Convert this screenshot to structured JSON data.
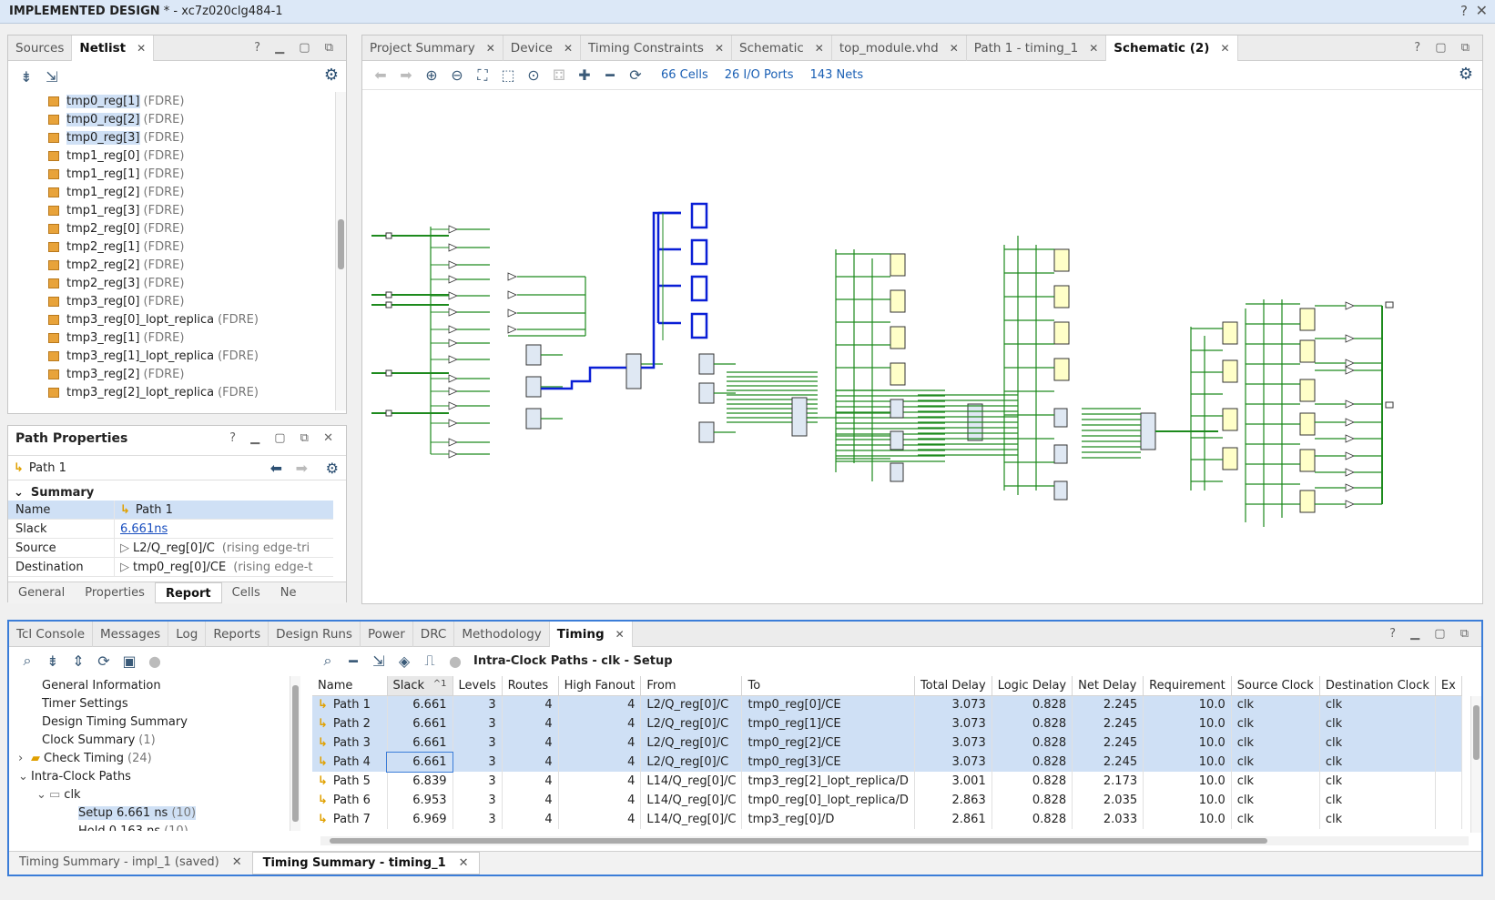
{
  "window": {
    "title_bold": "IMPLEMENTED DESIGN",
    "title_rest": " * - xc7z020clg484-1",
    "help": "?",
    "close": "✕"
  },
  "left_tabs": {
    "sources": "Sources",
    "netlist": "Netlist"
  },
  "netlist": [
    {
      "name": "tmp0_reg[1]",
      "type": "(FDRE)",
      "sel": true
    },
    {
      "name": "tmp0_reg[2]",
      "type": "(FDRE)",
      "sel": true
    },
    {
      "name": "tmp0_reg[3]",
      "type": "(FDRE)",
      "sel": true
    },
    {
      "name": "tmp1_reg[0]",
      "type": "(FDRE)",
      "sel": false
    },
    {
      "name": "tmp1_reg[1]",
      "type": "(FDRE)",
      "sel": false
    },
    {
      "name": "tmp1_reg[2]",
      "type": "(FDRE)",
      "sel": false
    },
    {
      "name": "tmp1_reg[3]",
      "type": "(FDRE)",
      "sel": false
    },
    {
      "name": "tmp2_reg[0]",
      "type": "(FDRE)",
      "sel": false
    },
    {
      "name": "tmp2_reg[1]",
      "type": "(FDRE)",
      "sel": false
    },
    {
      "name": "tmp2_reg[2]",
      "type": "(FDRE)",
      "sel": false
    },
    {
      "name": "tmp2_reg[3]",
      "type": "(FDRE)",
      "sel": false
    },
    {
      "name": "tmp3_reg[0]",
      "type": "(FDRE)",
      "sel": false
    },
    {
      "name": "tmp3_reg[0]_lopt_replica",
      "type": "(FDRE)",
      "sel": false
    },
    {
      "name": "tmp3_reg[1]",
      "type": "(FDRE)",
      "sel": false
    },
    {
      "name": "tmp3_reg[1]_lopt_replica",
      "type": "(FDRE)",
      "sel": false
    },
    {
      "name": "tmp3_reg[2]",
      "type": "(FDRE)",
      "sel": false
    },
    {
      "name": "tmp3_reg[2]_lopt_replica",
      "type": "(FDRE)",
      "sel": false
    }
  ],
  "path_props": {
    "title": "Path Properties",
    "path": "Path 1",
    "summary": "Summary",
    "rows": [
      {
        "k": "Name",
        "v": "Path 1"
      },
      {
        "k": "Slack",
        "v": "6.661ns"
      },
      {
        "k": "Source",
        "v": "L2/Q_reg[0]/C",
        "extra": "(rising edge-tri"
      },
      {
        "k": "Destination",
        "v": "tmp0_reg[0]/CE",
        "extra": "(rising edge-t"
      }
    ],
    "tabs": [
      "General",
      "Properties",
      "Report",
      "Cells",
      "Ne"
    ]
  },
  "schematic": {
    "tabs": [
      "Project Summary",
      "Device",
      "Timing Constraints",
      "Schematic",
      "top_module.vhd",
      "Path 1 - timing_1",
      "Schematic (2)"
    ],
    "cells": "66 Cells",
    "ports": "26 I/O Ports",
    "nets": "143 Nets"
  },
  "timing": {
    "tabs": [
      "Tcl Console",
      "Messages",
      "Log",
      "Reports",
      "Design Runs",
      "Power",
      "DRC",
      "Methodology",
      "Timing"
    ],
    "tree": [
      {
        "label": "General Information",
        "count": ""
      },
      {
        "label": "Timer Settings",
        "count": ""
      },
      {
        "label": "Design Timing Summary",
        "count": ""
      },
      {
        "label": "Clock Summary",
        "count": "(1)"
      },
      {
        "label": "Check Timing",
        "count": "(24)"
      },
      {
        "label": "Intra-Clock Paths",
        "count": ""
      },
      {
        "label": "clk",
        "count": ""
      },
      {
        "label": "Setup 6.661 ns",
        "count": "(10)"
      },
      {
        "label": "Hold 0.163 ns",
        "count": "(10)"
      }
    ],
    "heading": "Intra-Clock Paths - clk - Setup",
    "columns": [
      "Name",
      "Slack",
      "Levels",
      "Routes",
      "High Fanout",
      "From",
      "To",
      "Total Delay",
      "Logic Delay",
      "Net Delay",
      "Requirement",
      "Source Clock",
      "Destination Clock",
      "Ex"
    ],
    "rows": [
      [
        "Path 1",
        "6.661",
        "3",
        "4",
        "4",
        "L2/Q_reg[0]/C",
        "tmp0_reg[0]/CE",
        "3.073",
        "0.828",
        "2.245",
        "10.0",
        "clk",
        "clk"
      ],
      [
        "Path 2",
        "6.661",
        "3",
        "4",
        "4",
        "L2/Q_reg[0]/C",
        "tmp0_reg[1]/CE",
        "3.073",
        "0.828",
        "2.245",
        "10.0",
        "clk",
        "clk"
      ],
      [
        "Path 3",
        "6.661",
        "3",
        "4",
        "4",
        "L2/Q_reg[0]/C",
        "tmp0_reg[2]/CE",
        "3.073",
        "0.828",
        "2.245",
        "10.0",
        "clk",
        "clk"
      ],
      [
        "Path 4",
        "6.661",
        "3",
        "4",
        "4",
        "L2/Q_reg[0]/C",
        "tmp0_reg[3]/CE",
        "3.073",
        "0.828",
        "2.245",
        "10.0",
        "clk",
        "clk"
      ],
      [
        "Path 5",
        "6.839",
        "3",
        "4",
        "4",
        "L14/Q_reg[0]/C",
        "tmp3_reg[2]_lopt_replica/D",
        "3.001",
        "0.828",
        "2.173",
        "10.0",
        "clk",
        "clk"
      ],
      [
        "Path 6",
        "6.953",
        "3",
        "4",
        "4",
        "L14/Q_reg[0]/C",
        "tmp0_reg[0]_lopt_replica/D",
        "2.863",
        "0.828",
        "2.035",
        "10.0",
        "clk",
        "clk"
      ],
      [
        "Path 7",
        "6.969",
        "3",
        "4",
        "4",
        "L14/Q_reg[0]/C",
        "tmp3_reg[0]/D",
        "2.861",
        "0.828",
        "2.033",
        "10.0",
        "clk",
        "clk"
      ]
    ],
    "bottom_tabs": [
      "Timing Summary - impl_1 (saved)",
      "Timing Summary - timing_1"
    ]
  },
  "colors": {
    "accent": "#1a5fb4",
    "selection": "#cfe0f5",
    "wire": "#1d8a1d",
    "highlight": "#0a1fd6"
  }
}
